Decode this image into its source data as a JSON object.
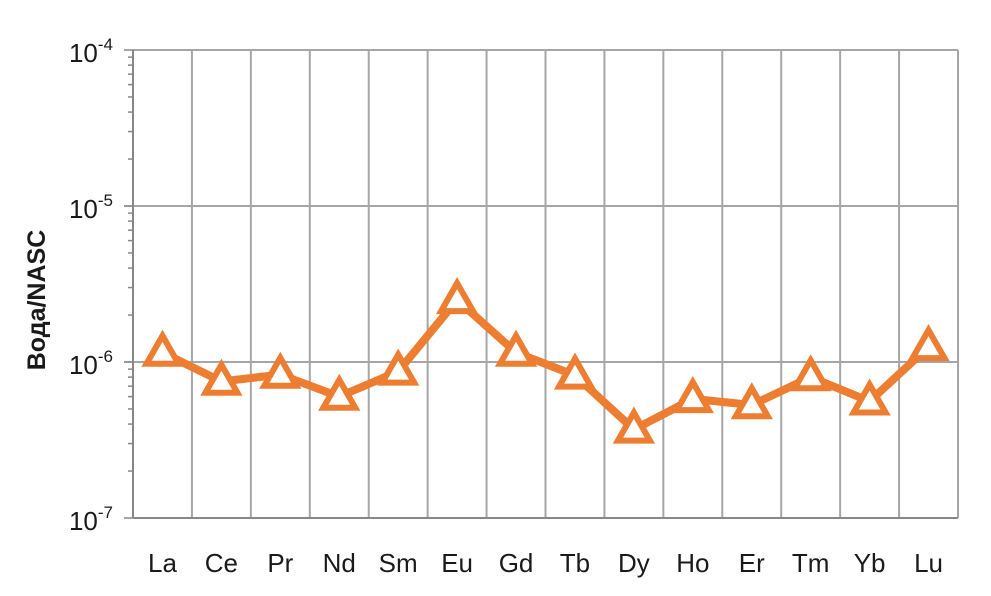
{
  "chart_data": {
    "type": "line",
    "ylabel": "Вода/NASC",
    "xlabel": "",
    "title": "",
    "yscale": "log",
    "ylim": [
      1e-07,
      0.0001
    ],
    "grid": true,
    "y_ticks": [
      {
        "value": 0.0001,
        "base": "10",
        "exp": "-4"
      },
      {
        "value": 1e-05,
        "base": "10",
        "exp": "-5"
      },
      {
        "value": 1e-06,
        "base": "10",
        "exp": "-6"
      },
      {
        "value": 1e-07,
        "base": "10",
        "exp": "-7"
      }
    ],
    "categories": [
      "La",
      "Ce",
      "Pr",
      "Nd",
      "Sm",
      "Eu",
      "Gd",
      "Tb",
      "Dy",
      "Ho",
      "Er",
      "Tm",
      "Yb",
      "Lu"
    ],
    "series": [
      {
        "values": [
          1.15e-06,
          7.5e-07,
          8.3e-07,
          6e-07,
          8.7e-07,
          2.5e-06,
          1.15e-06,
          8.2e-07,
          3.7e-07,
          5.8e-07,
          5.3e-07,
          8e-07,
          5.6e-07,
          1.25e-06
        ],
        "color": "#ED7D31",
        "marker": "triangle-open"
      }
    ],
    "colors": {
      "grid": "#a6a6a6",
      "axis": "#888888",
      "series": "#ED7D31"
    }
  }
}
